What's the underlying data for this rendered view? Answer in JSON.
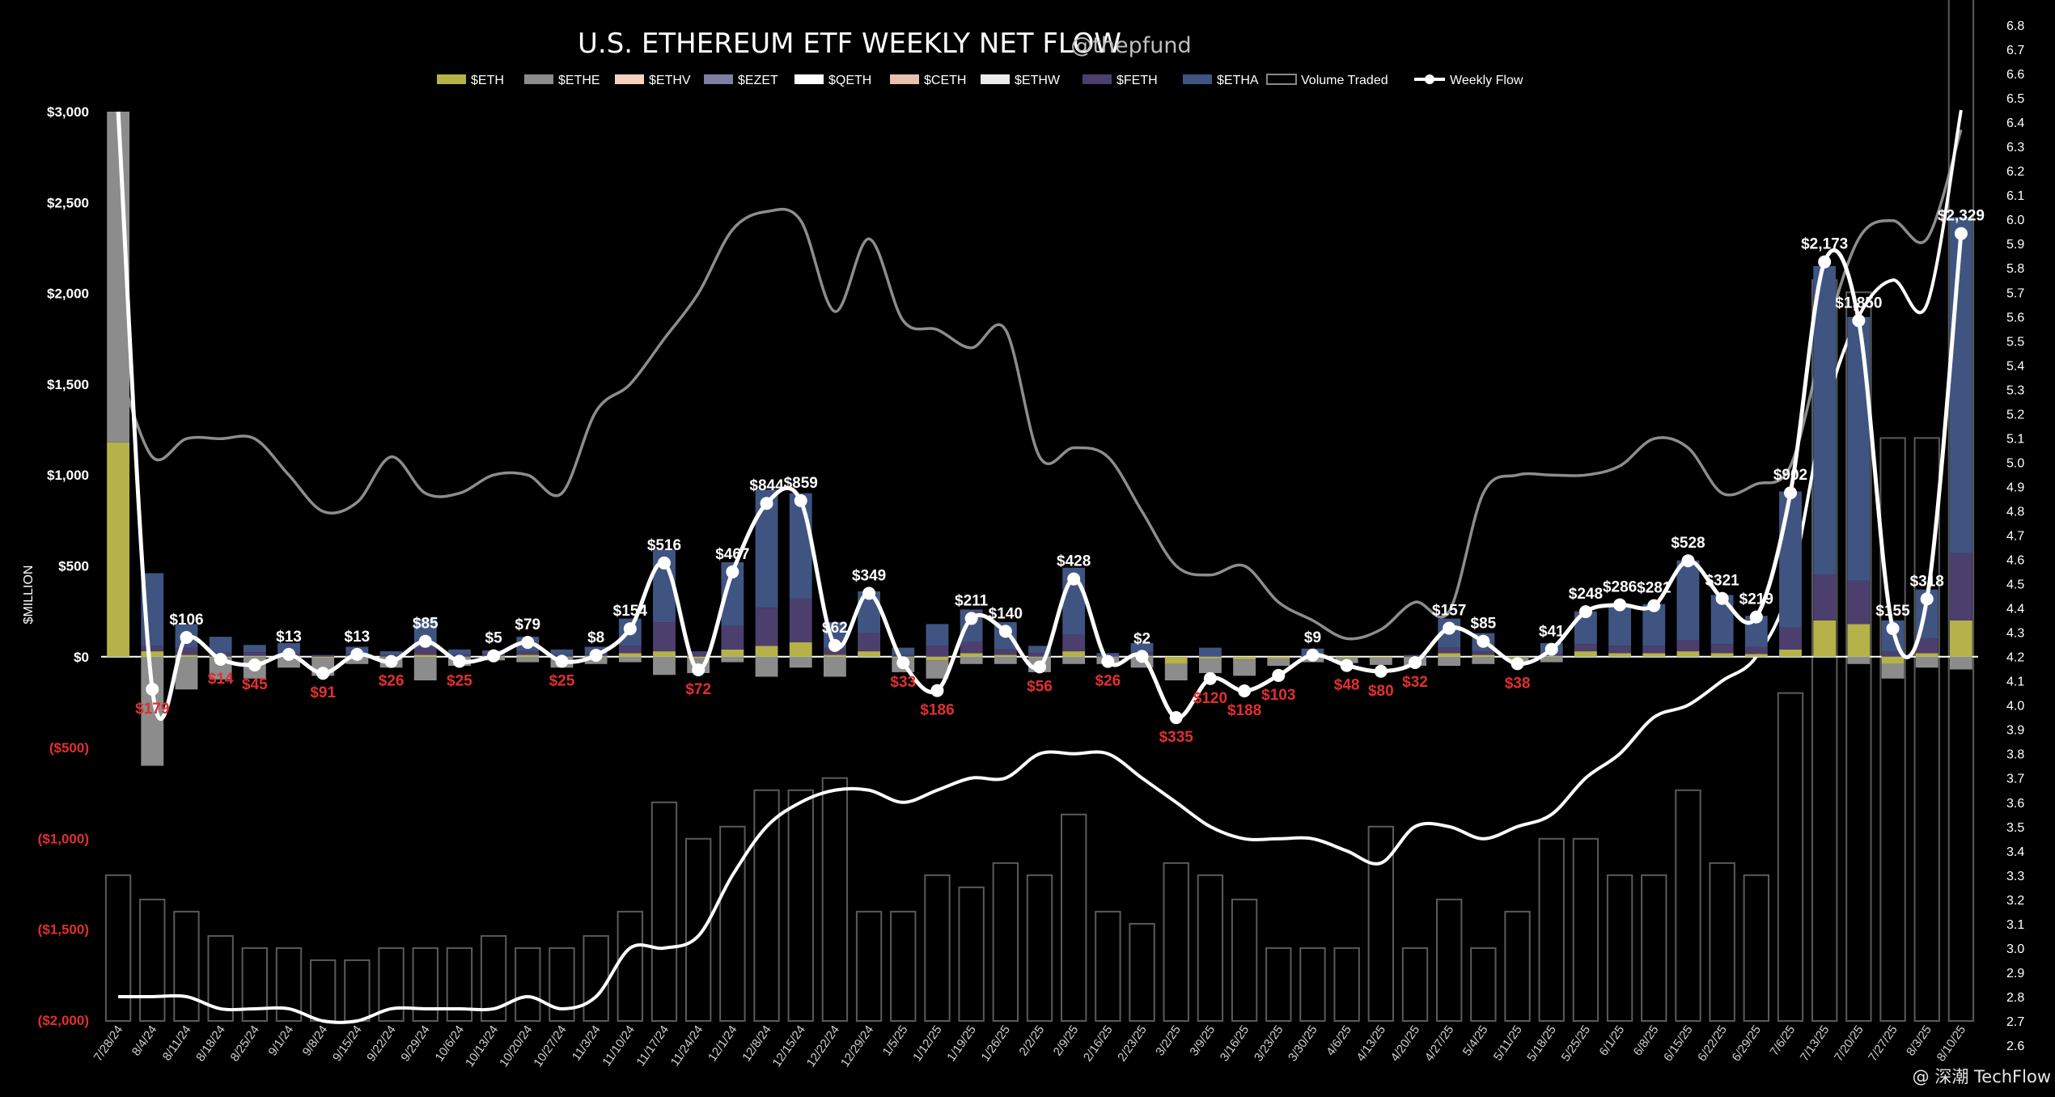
{
  "chart_data": {
    "type": "bar",
    "title": "U.S. ETHEREUM ETF WEEKLY NET FLOW",
    "handle": "@thepfund",
    "ylabel": "$MILLION",
    "ylim": [
      -2000,
      3000
    ],
    "y_ticks": [
      "$3,000",
      "$2,500",
      "$2,000",
      "$1,500",
      "$1,000",
      "$500",
      "$0",
      "($500)",
      "($1,000)",
      "($1,500)",
      "($2,000)"
    ],
    "y2lim": [
      2.6,
      6.8
    ],
    "y2_ticks": [
      "6.8",
      "6.7",
      "6.6",
      "6.5",
      "6.4",
      "6.3",
      "6.2",
      "6.1",
      "6.0",
      "5.9",
      "5.8",
      "5.7",
      "5.6",
      "5.5",
      "5.4",
      "5.3",
      "5.2",
      "5.1",
      "5.0",
      "4.9",
      "4.8",
      "4.7",
      "4.6",
      "4.5",
      "4.4",
      "4.3",
      "4.2",
      "4.1",
      "4.0",
      "3.9",
      "3.8",
      "3.7",
      "3.6",
      "3.5",
      "3.4",
      "3.3",
      "3.2",
      "3.1",
      "3.0",
      "2.9",
      "2.8",
      "2.7",
      "2.6"
    ],
    "legend": [
      "$ETH",
      "$ETHE",
      "$ETHV",
      "$EZET",
      "$QETH",
      "$CETH",
      "$ETHW",
      "$FETH",
      "$ETHA",
      "Volume Traded",
      "Weekly Flow"
    ],
    "colors": {
      "$ETH": "#b5b24a",
      "$ETHE": "#8c8c8c",
      "$ETHV": "#f4d2bf",
      "$EZET": "#7f7fa3",
      "$QETH": "#ffffff",
      "$CETH": "#e6c0b0",
      "$ETHW": "#ececec",
      "$FETH": "#4c3f6e",
      "$ETHA": "#3f5480",
      "volume": "#5a5a5a",
      "flow": "#ffffff",
      "price": "#b0b0b0",
      "positive_label": "#ffffff",
      "negative_label": "#e03030"
    },
    "categories": [
      "7/28/24",
      "8/4/24",
      "8/11/24",
      "8/18/24",
      "8/25/24",
      "9/1/24",
      "9/8/24",
      "9/15/24",
      "9/22/24",
      "9/29/24",
      "10/6/24",
      "10/13/24",
      "10/20/24",
      "10/27/24",
      "11/3/24",
      "11/10/24",
      "11/17/24",
      "11/24/24",
      "12/1/24",
      "12/8/24",
      "12/15/24",
      "12/22/24",
      "12/29/24",
      "1/5/25",
      "1/12/25",
      "1/19/25",
      "1/26/25",
      "2/2/25",
      "2/9/25",
      "2/16/25",
      "2/23/25",
      "3/2/25",
      "3/9/25",
      "3/16/25",
      "3/23/25",
      "3/30/25",
      "4/6/25",
      "4/13/25",
      "4/20/25",
      "4/27/25",
      "5/4/25",
      "5/11/25",
      "5/18/25",
      "5/25/25",
      "6/1/25",
      "6/8/25",
      "6/15/25",
      "6/22/25",
      "6/29/25",
      "7/6/25",
      "7/13/25",
      "7/20/25",
      "7/27/25",
      "8/3/25",
      "8/10/25"
    ],
    "weekly_flow": [
      3000,
      -179,
      106,
      -14,
      -45,
      13,
      -91,
      13,
      -26,
      85,
      -25,
      5,
      79,
      -25,
      8,
      154,
      516,
      -72,
      467,
      844,
      859,
      62,
      349,
      -33,
      -186,
      211,
      140,
      -56,
      428,
      -26,
      2,
      -335,
      -120,
      -188,
      -103,
      9,
      -48,
      -80,
      -32,
      157,
      85,
      -38,
      41,
      248,
      286,
      281,
      528,
      321,
      219,
      902,
      2173,
      1850,
      155,
      318,
      2329
    ],
    "flow_labels": [
      "",
      "$179",
      "$106",
      "$14",
      "$45",
      "$13",
      "$91",
      "$13",
      "$26",
      "$85",
      "$25",
      "$5",
      "$79",
      "$25",
      "$8",
      "$154",
      "$516",
      "$72",
      "$467",
      "$844",
      "$859",
      "$62",
      "$349",
      "$33",
      "$186",
      "$211",
      "$140",
      "$56",
      "$428",
      "$26",
      "$2",
      "$335",
      "$120",
      "$188",
      "$103",
      "$9",
      "$48",
      "$80",
      "$32",
      "$157",
      "$85",
      "$38",
      "$41",
      "$248",
      "$286",
      "$281",
      "$528",
      "$321",
      "$219",
      "$902",
      "$2,173",
      "$1,850",
      "$155",
      "$318",
      "$2,329"
    ],
    "stack_series": [
      {
        "name": "$ETH",
        "values": [
          1180,
          30,
          10,
          -5,
          5,
          5,
          -5,
          5,
          0,
          10,
          0,
          5,
          10,
          0,
          5,
          20,
          30,
          -10,
          40,
          60,
          80,
          10,
          30,
          -5,
          -20,
          20,
          10,
          -5,
          30,
          0,
          5,
          -40,
          -10,
          -15,
          -10,
          0,
          -5,
          -5,
          0,
          20,
          10,
          -5,
          5,
          30,
          20,
          20,
          30,
          20,
          15,
          40,
          200,
          180,
          -40,
          20,
          200
        ]
      },
      {
        "name": "$ETHE",
        "values": [
          3000,
          -600,
          -180,
          -120,
          -120,
          -60,
          -100,
          -40,
          -60,
          -130,
          -50,
          -20,
          -30,
          -60,
          -40,
          -30,
          -100,
          -80,
          -30,
          -110,
          -60,
          -110,
          0,
          -80,
          -100,
          -40,
          -40,
          -80,
          -40,
          -40,
          -60,
          -90,
          -80,
          -90,
          -40,
          -30,
          -30,
          -40,
          -50,
          -50,
          -40,
          -20,
          -30,
          0,
          0,
          0,
          0,
          0,
          0,
          0,
          0,
          -40,
          -80,
          -60,
          -70
        ]
      },
      {
        "name": "$FETH",
        "values": [
          0,
          30,
          40,
          20,
          20,
          10,
          10,
          10,
          10,
          40,
          10,
          10,
          20,
          10,
          10,
          40,
          160,
          30,
          130,
          210,
          240,
          40,
          100,
          10,
          60,
          60,
          30,
          20,
          90,
          0,
          20,
          0,
          0,
          0,
          0,
          5,
          0,
          0,
          10,
          30,
          20,
          0,
          10,
          40,
          40,
          40,
          60,
          50,
          40,
          120,
          250,
          240,
          30,
          80,
          370
        ]
      },
      {
        "name": "$ETHA",
        "values": [
          0,
          400,
          130,
          90,
          40,
          60,
          0,
          40,
          20,
          160,
          30,
          20,
          80,
          30,
          40,
          150,
          400,
          0,
          350,
          650,
          580,
          140,
          230,
          40,
          120,
          180,
          150,
          40,
          370,
          20,
          50,
          0,
          50,
          0,
          0,
          40,
          0,
          0,
          0,
          160,
          100,
          0,
          60,
          180,
          230,
          230,
          440,
          270,
          170,
          750,
          1700,
          1450,
          170,
          270,
          1850
        ]
      }
    ],
    "volume_traded": [
      0.6,
      0.5,
      0.45,
      0.35,
      0.3,
      0.3,
      0.25,
      0.25,
      0.3,
      0.3,
      0.3,
      0.35,
      0.3,
      0.3,
      0.35,
      0.45,
      0.9,
      0.75,
      0.8,
      0.95,
      0.95,
      1.0,
      0.45,
      0.45,
      0.6,
      0.55,
      0.65,
      0.6,
      0.85,
      0.45,
      0.4,
      0.65,
      0.6,
      0.5,
      0.3,
      0.3,
      0.3,
      0.8,
      0.3,
      0.5,
      0.3,
      0.45,
      0.75,
      0.75,
      0.6,
      0.6,
      0.95,
      0.65,
      0.6,
      1.35,
      3.05,
      3.0,
      2.4,
      2.4,
      5.8
    ],
    "eth_price_thousands": [
      1.6,
      1.1,
      1.2,
      1.2,
      1.2,
      1.0,
      0.8,
      0.85,
      1.1,
      0.9,
      0.9,
      1.0,
      1.0,
      0.9,
      1.35,
      1.5,
      1.75,
      2.0,
      2.35,
      2.45,
      2.4,
      1.9,
      2.3,
      1.85,
      1.8,
      1.7,
      1.8,
      1.1,
      1.15,
      1.1,
      0.8,
      0.5,
      0.45,
      0.5,
      0.3,
      0.2,
      0.1,
      0.15,
      0.3,
      0.25,
      0.9,
      1.0,
      1.0,
      1.0,
      1.05,
      1.2,
      1.15,
      0.9,
      0.95,
      1.05,
      1.75,
      2.3,
      2.4,
      2.3,
      2.9
    ],
    "cumulative_flow_billions": [
      2.8,
      2.8,
      2.8,
      2.75,
      2.75,
      2.75,
      2.7,
      2.7,
      2.75,
      2.75,
      2.75,
      2.75,
      2.8,
      2.75,
      2.8,
      3.0,
      3.0,
      3.05,
      3.3,
      3.5,
      3.6,
      3.65,
      3.65,
      3.6,
      3.65,
      3.7,
      3.7,
      3.8,
      3.8,
      3.8,
      3.7,
      3.6,
      3.5,
      3.45,
      3.45,
      3.45,
      3.4,
      3.35,
      3.5,
      3.5,
      3.45,
      3.5,
      3.55,
      3.7,
      3.8,
      3.95,
      4.0,
      4.1,
      4.2,
      4.5,
      5.2,
      5.6,
      5.75,
      5.65,
      6.45
    ]
  },
  "watermark": "@ 深潮 TechFlow"
}
